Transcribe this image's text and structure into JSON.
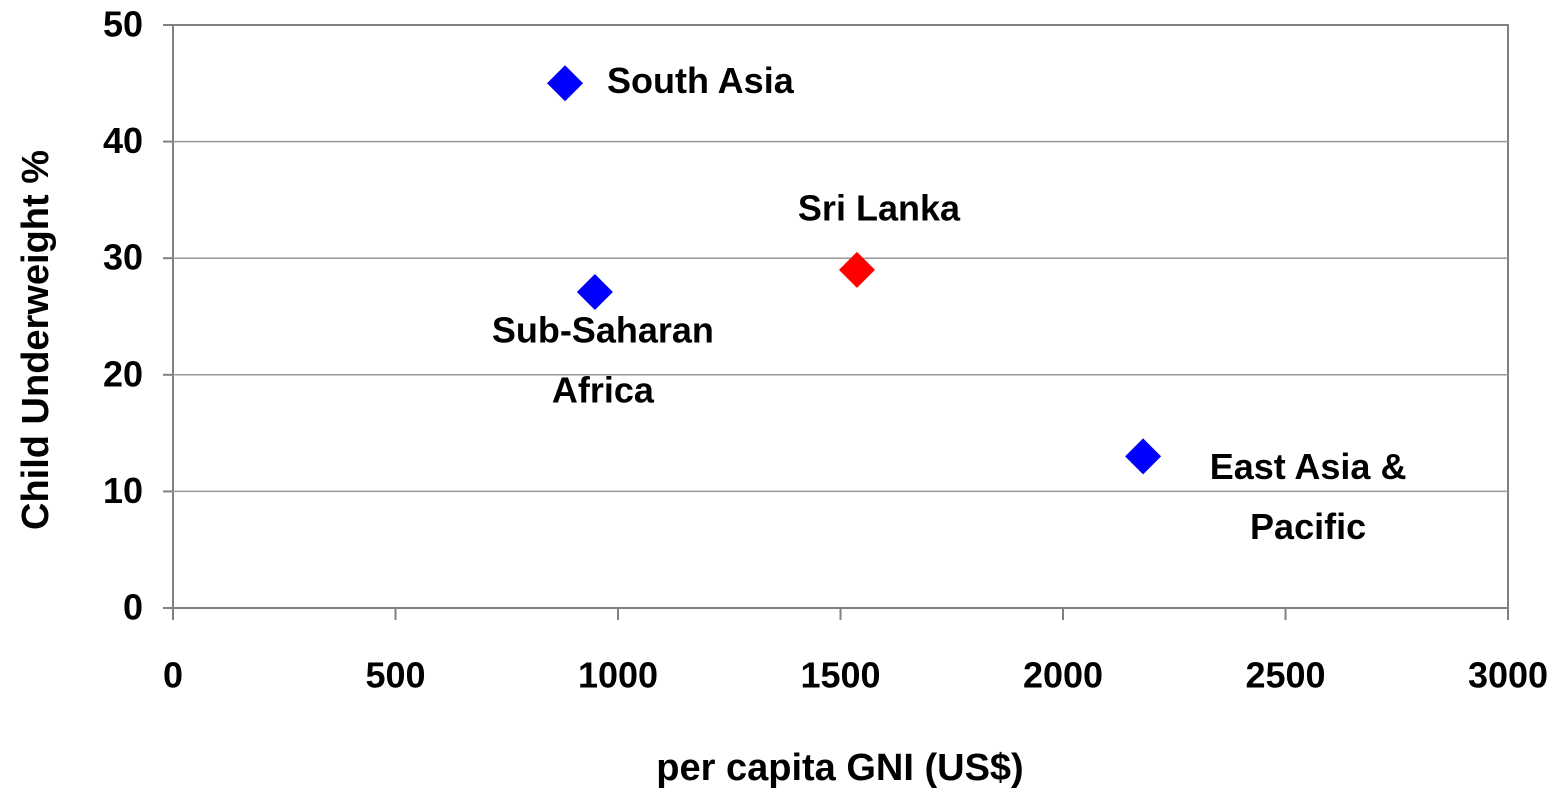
{
  "chart_data": {
    "type": "scatter",
    "xlabel": "per capita GNI (US$)",
    "ylabel": "Child Underweight %",
    "points": [
      {
        "label": [
          "South Asia"
        ],
        "x": 881,
        "y": 45,
        "color": "#0000ff"
      },
      {
        "label": [
          "Sub-Saharan",
          "Africa"
        ],
        "x": 948,
        "y": 27.1,
        "color": "#0000ff"
      },
      {
        "label": [
          "Sri Lanka"
        ],
        "x": 1537,
        "y": 29,
        "color": "#ff0000"
      },
      {
        "label": [
          "East Asia &",
          "Pacific"
        ],
        "x": 2180,
        "y": 13,
        "color": "#0000ff"
      }
    ],
    "xlim": [
      0,
      3000
    ],
    "xticks": [
      0,
      500,
      1000,
      1500,
      2000,
      2500,
      3000
    ],
    "ylim": [
      0,
      50
    ],
    "yticks": [
      0,
      10,
      20,
      30,
      40,
      50
    ],
    "grid": true
  }
}
